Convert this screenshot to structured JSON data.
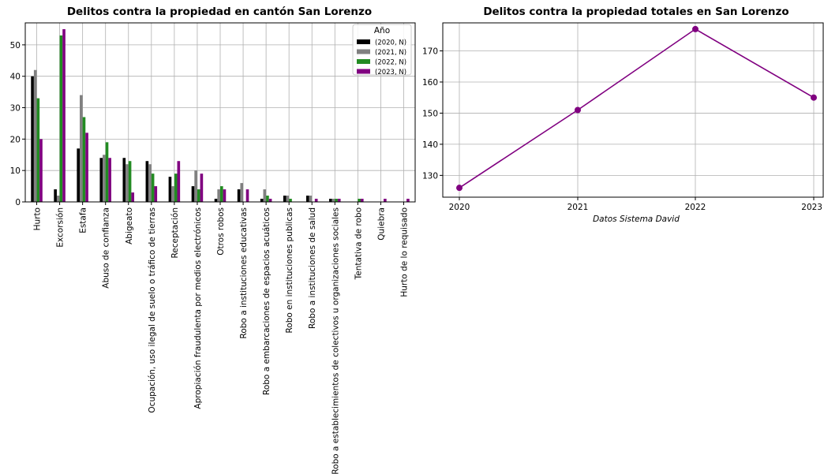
{
  "chart_data": [
    {
      "type": "bar",
      "title": "Delitos contra la propiedad en cantón San Lorenzo",
      "xlabel": "",
      "ylabel": "",
      "ylim": [
        0,
        57
      ],
      "yticks": [
        0,
        10,
        20,
        30,
        40,
        50
      ],
      "grid": true,
      "legend": {
        "title": "Año",
        "placement": "top-right"
      },
      "categories": [
        "Hurto",
        "Excorsión",
        "Estafa",
        "Abuso de confianza",
        "Abigeato",
        "Ocupación, uso ilegal de suelo o tráfico de tierras",
        "Receptación",
        "Apropiación fraudulenta por medios electrónicos",
        "Otros robos",
        "Robo a instituciones educativas",
        "Robo a embarcaciones de espacios acuáticos",
        "Robo en instituciones publicas",
        "Robo a instituciones de salud",
        "Robo a establecimientos de colectivos u organizaciones sociales",
        "Tentativa de robo",
        "Quiebra",
        "Hurto de lo requisado"
      ],
      "series": [
        {
          "name": "(2020, N)",
          "color": "#000000",
          "values": [
            40,
            4,
            17,
            14,
            14,
            13,
            8,
            5,
            1,
            4,
            1,
            2,
            2,
            1,
            0,
            0,
            0
          ]
        },
        {
          "name": "(2021, N)",
          "color": "#808080",
          "values": [
            42,
            2,
            34,
            15,
            12,
            12,
            5,
            10,
            4,
            6,
            4,
            2,
            2,
            1,
            0,
            0,
            0
          ]
        },
        {
          "name": "(2022, N)",
          "color": "#228b22",
          "values": [
            33,
            53,
            27,
            19,
            13,
            9,
            9,
            4,
            5,
            0,
            2,
            1,
            0,
            1,
            1,
            0,
            0
          ]
        },
        {
          "name": "(2023, N)",
          "color": "#800080",
          "values": [
            20,
            55,
            22,
            14,
            3,
            5,
            13,
            9,
            4,
            4,
            1,
            0,
            1,
            1,
            1,
            1,
            1
          ]
        }
      ]
    },
    {
      "type": "line",
      "title": "Delitos contra la propiedad totales en San Lorenzo",
      "xlabel": "Datos Sistema David",
      "ylabel": "",
      "x": [
        "2020",
        "2021",
        "2022",
        "2023"
      ],
      "ylim": [
        123,
        179
      ],
      "yticks": [
        130,
        140,
        150,
        160,
        170
      ],
      "grid": true,
      "series": [
        {
          "color": "#800080",
          "values": [
            126,
            151,
            177,
            155
          ]
        }
      ]
    }
  ]
}
